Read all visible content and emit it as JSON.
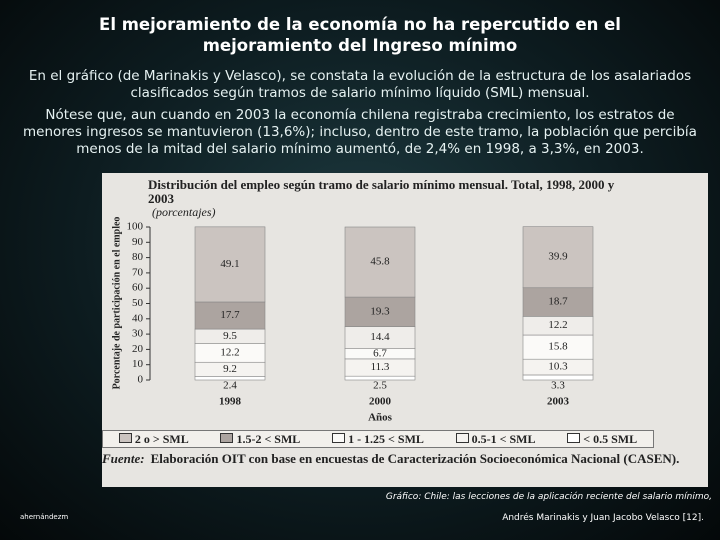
{
  "slide": {
    "title": "El mejoramiento de la economía no ha repercutido en el mejoramiento del Ingreso mínimo",
    "paragraph_1": "En el gráfico (de Marinakis y Velasco), se constata la evolución de la estructura de los asalariados clasificados según tramos de salario mínimo líquido (SML) mensual.",
    "paragraph_2": "Nótese que, aun cuando en 2003 la economía chilena registraba crecimiento, los estratos de menores ingresos se mantuvieron (13,6%); incluso, dentro de este tramo, la población que percibía menos de la mitad del salario mínimo aumentó, de 2,4% en 1998, a 3,3%, en 2003.",
    "caption": "Gráfico: Chile: las lecciones de la aplicación reciente del salario mínimo,",
    "caption_authors": "Andrés Marinakis y Juan Jacobo Velasco [12].",
    "author": "ahernándezm"
  },
  "chart_data": {
    "type": "stacked-bar",
    "title": "Distribución del empleo según tramo de salario mínimo mensual. Total, 1998, 2000 y 2003",
    "subtitle": "(porcentajes)",
    "y_label": "Porcentaje de participación en el empleo",
    "x_label": "Años",
    "source_label": "Fuente:",
    "source": "Elaboración OIT con base en encuestas de Caracterización Socioeconómica Nacional (CASEN).",
    "categories": [
      "1998",
      "2000",
      "2003"
    ],
    "ylim": [
      0,
      100
    ],
    "yticks": [
      0,
      10,
      20,
      30,
      40,
      50,
      60,
      70,
      80,
      90,
      100
    ],
    "series": [
      {
        "name": "< 0.5 SML",
        "color": "#ffffff",
        "values": [
          2.4,
          2.5,
          3.3
        ]
      },
      {
        "name": "0.5-1 < SML",
        "color": "#f5f3f0",
        "values": [
          9.2,
          11.3,
          10.3
        ]
      },
      {
        "name": "1 - 1.25 < SML",
        "color": "#fbfaf8",
        "values": [
          12.2,
          6.7,
          15.8
        ]
      },
      {
        "name": null,
        "color": "#efedea",
        "values": [
          9.5,
          14.4,
          12.2
        ]
      },
      {
        "name": "1.5-2 < SML",
        "color": "#aca4a0",
        "values": [
          17.7,
          19.3,
          18.7
        ]
      },
      {
        "name": "2 o > SML",
        "color": "#cbc4c0",
        "values": [
          49.1,
          45.8,
          39.9
        ]
      }
    ]
  }
}
